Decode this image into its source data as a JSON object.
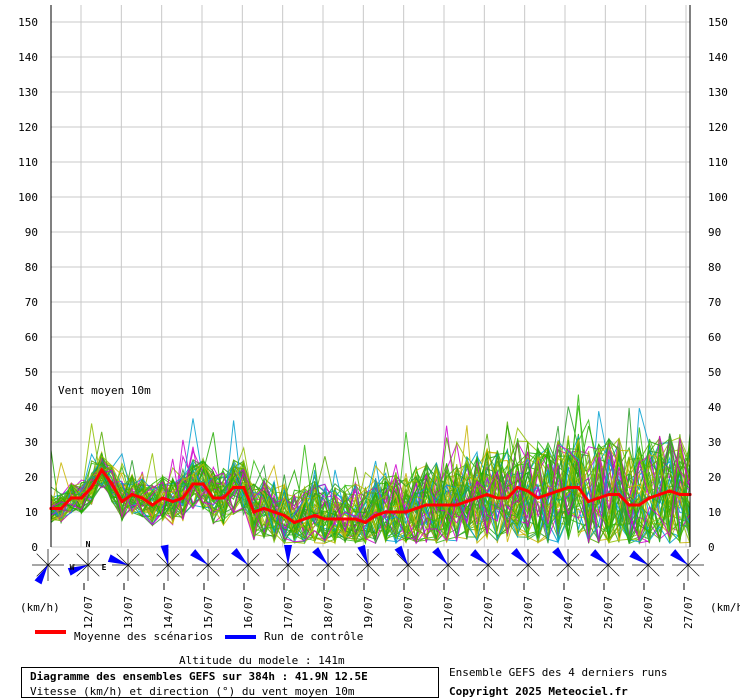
{
  "chart_data": {
    "type": "line",
    "title": "Diagramme des ensembles GEFS sur 384h : 41.9N 12.5E",
    "subtitle": "Vitesse (km/h) et direction (°) du vent moyen 10m",
    "series_label": "Vent moyen 10m",
    "ylabel": "(km/h)",
    "ylim": [
      0,
      150
    ],
    "yticks": [
      0,
      10,
      20,
      30,
      40,
      50,
      60,
      70,
      80,
      90,
      100,
      110,
      120,
      130,
      140,
      150
    ],
    "date_labels": [
      "12/07",
      "13/07",
      "14/07",
      "15/07",
      "16/07",
      "17/07",
      "18/07",
      "19/07",
      "20/07",
      "21/07",
      "22/07",
      "23/07",
      "24/07",
      "25/07",
      "26/07",
      "27/07"
    ],
    "grid": true,
    "legend_placement": "bottom",
    "series": [
      {
        "name": "Moyenne des scénarios",
        "color": "#ff0000",
        "values": [
          11,
          11,
          14,
          14,
          17,
          22,
          18,
          13,
          15,
          14,
          12,
          14,
          13,
          14,
          18,
          18,
          14,
          14,
          17,
          17,
          10,
          11,
          10,
          9,
          7,
          8,
          9,
          8,
          8,
          8,
          8,
          7,
          9,
          10,
          10,
          10,
          11,
          12,
          12,
          12,
          12,
          13,
          14,
          15,
          14,
          14,
          17,
          16,
          14,
          15,
          16,
          17,
          17,
          13,
          14,
          15,
          15,
          12,
          12,
          14,
          15,
          16,
          15,
          15
        ]
      },
      {
        "name": "Run de contrôle",
        "color": "#0000ff",
        "values": []
      }
    ],
    "wind_directions": [
      "N",
      "W",
      "E"
    ]
  },
  "legend": {
    "mean_label": "Moyenne des scénarios",
    "control_label": "Run de contrôle"
  },
  "info": {
    "altitude": "Altitude du modele : 141m",
    "ensemble_note": "Ensemble GEFS des 4 derniers runs",
    "copyright": "Copyright 2025 Meteociel.fr"
  }
}
